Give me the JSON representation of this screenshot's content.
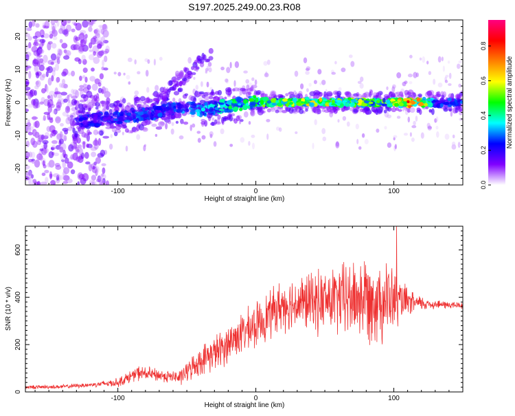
{
  "figure": {
    "title": "S197.2025.249.00.23.R08"
  },
  "chart_data": [
    {
      "type": "heatmap",
      "name": "spectrogram",
      "title": "S197.2025.249.00.23.R08",
      "xlabel": "Height of straight line (km)",
      "ylabel": "Frequency (Hz)",
      "xlim": [
        -167,
        150
      ],
      "ylim": [
        -25,
        25
      ],
      "xticks": [
        -100,
        0,
        100
      ],
      "yticks": [
        -20,
        -10,
        0,
        10,
        20
      ],
      "colorbar": {
        "label": "Normalized spectral amplitude",
        "range": [
          0,
          0.95
        ],
        "ticks": [
          "0.0",
          "0.2",
          "0.4",
          "0.6",
          "0.8"
        ],
        "tick_values": [
          0,
          0.2,
          0.4,
          0.6,
          0.8
        ],
        "colors": [
          "#ffffff",
          "#8000ff",
          "#0000ff",
          "#00ffff",
          "#00ff00",
          "#ffff00",
          "#ff8000",
          "#ff0000",
          "#ff0080"
        ]
      },
      "ridge": {
        "description": "signal band near 0 Hz",
        "x_start": -130,
        "x_end": 150,
        "freq_points": [
          [
            -130,
            -6
          ],
          [
            -110,
            -5
          ],
          [
            -90,
            -4
          ],
          [
            -70,
            -3
          ],
          [
            -55,
            -1
          ],
          [
            -40,
            -2
          ],
          [
            -20,
            -1
          ],
          [
            0,
            0
          ],
          [
            50,
            0
          ],
          [
            100,
            0
          ],
          [
            150,
            0
          ]
        ],
        "amplitude_points": [
          [
            -130,
            0.25
          ],
          [
            -100,
            0.3
          ],
          [
            -60,
            0.3
          ],
          [
            -20,
            0.45
          ],
          [
            20,
            0.6
          ],
          [
            60,
            0.7
          ],
          [
            90,
            0.55
          ],
          [
            115,
            0.9
          ],
          [
            130,
            0.3
          ],
          [
            150,
            0.3
          ]
        ]
      },
      "secondary_branch": {
        "x_range": [
          -75,
          -32
        ],
        "freq_range": [
          0,
          15
        ]
      }
    },
    {
      "type": "line",
      "name": "snr",
      "xlabel": "Height of straight line (km)",
      "ylabel": "SNR (10 * v/v)",
      "xlim": [
        -167,
        150
      ],
      "ylim": [
        0,
        700
      ],
      "xticks": [
        -100,
        0,
        100
      ],
      "yticks": [
        0,
        200,
        400,
        600
      ],
      "series": [
        {
          "name": "SNR",
          "color": "#ee3030",
          "envelope_points": [
            [
              -167,
              20
            ],
            [
              -140,
              22
            ],
            [
              -120,
              30
            ],
            [
              -100,
              40
            ],
            [
              -85,
              80
            ],
            [
              -70,
              70
            ],
            [
              -55,
              60
            ],
            [
              -45,
              110
            ],
            [
              -35,
              150
            ],
            [
              -25,
              180
            ],
            [
              -15,
              230
            ],
            [
              0,
              280
            ],
            [
              10,
              330
            ],
            [
              20,
              370
            ],
            [
              40,
              380
            ],
            [
              60,
              390
            ],
            [
              80,
              400
            ],
            [
              95,
              390
            ],
            [
              105,
              380
            ],
            [
              115,
              375
            ],
            [
              130,
              370
            ],
            [
              150,
              365
            ]
          ],
          "spread_points": [
            [
              -167,
              6
            ],
            [
              -120,
              8
            ],
            [
              -100,
              15
            ],
            [
              -85,
              25
            ],
            [
              -60,
              20
            ],
            [
              -45,
              40
            ],
            [
              -30,
              60
            ],
            [
              -10,
              70
            ],
            [
              10,
              80
            ],
            [
              40,
              100
            ],
            [
              60,
              120
            ],
            [
              80,
              150
            ],
            [
              95,
              140
            ],
            [
              105,
              70
            ],
            [
              115,
              30
            ],
            [
              130,
              15
            ],
            [
              150,
              12
            ]
          ],
          "peak": {
            "x": 102,
            "y": 700
          }
        }
      ]
    }
  ]
}
